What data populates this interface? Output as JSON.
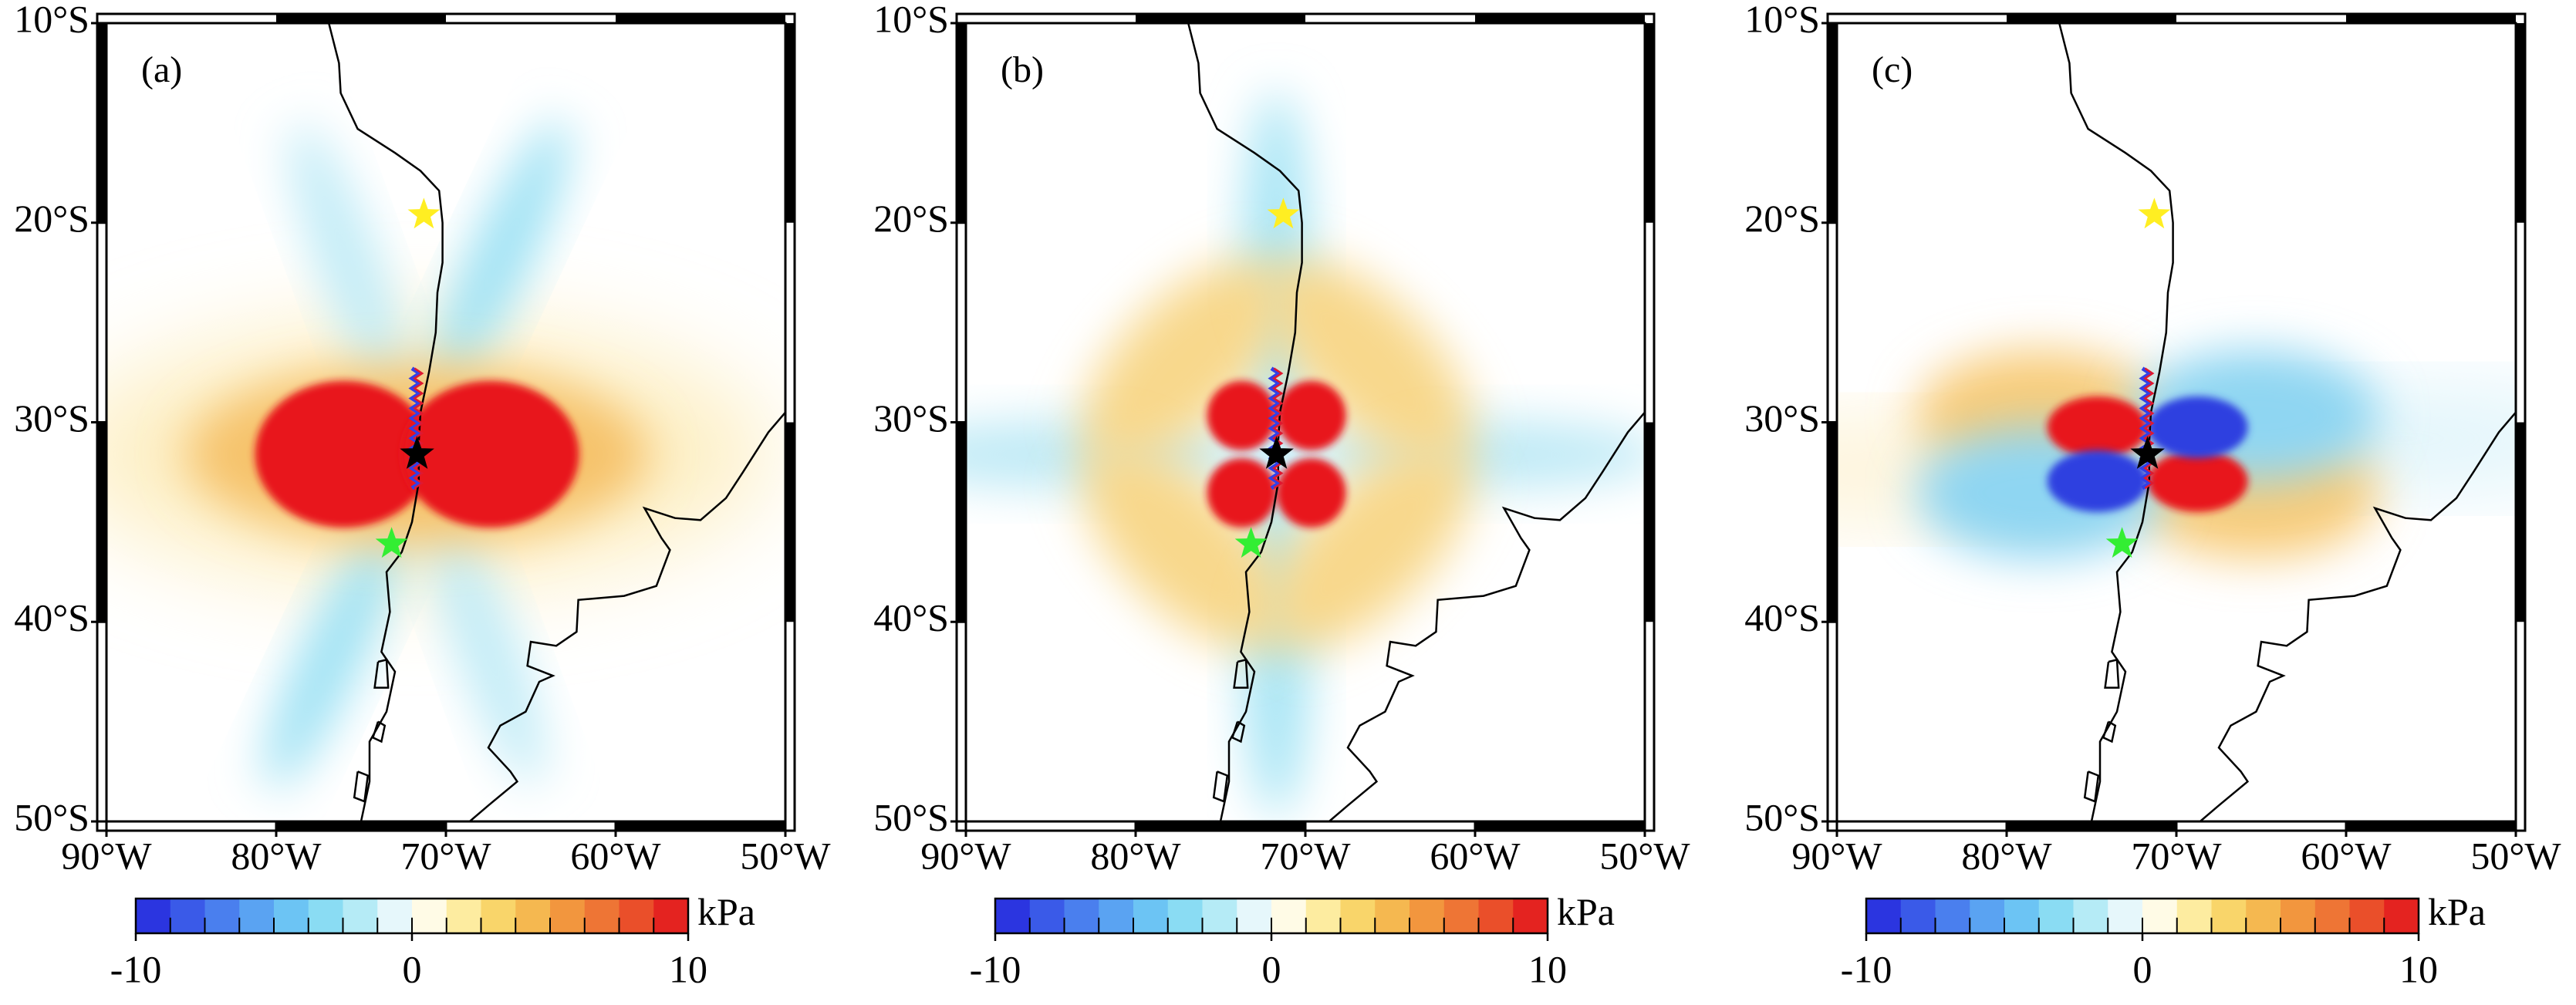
{
  "panels": [
    {
      "label": "(a)"
    },
    {
      "label": "(b)"
    },
    {
      "label": "(c)"
    }
  ],
  "map": {
    "xlim": [
      -90,
      -50
    ],
    "ylim": [
      -50,
      -10
    ],
    "xticks": [
      {
        "value": -90,
        "label": "90°W"
      },
      {
        "value": -80,
        "label": "80°W"
      },
      {
        "value": -70,
        "label": "70°W"
      },
      {
        "value": -60,
        "label": "60°W"
      },
      {
        "value": -50,
        "label": "50°W"
      }
    ],
    "yticks": [
      {
        "value": -10,
        "label": "10°S"
      },
      {
        "value": -20,
        "label": "20°S"
      },
      {
        "value": -30,
        "label": "30°S"
      },
      {
        "value": -40,
        "label": "40°S"
      },
      {
        "value": -50,
        "label": "50°S"
      }
    ]
  },
  "markers": [
    {
      "lon": -71.3,
      "lat": -19.6,
      "color": "#ffee22"
    },
    {
      "lon": -71.7,
      "lat": -31.6,
      "color": "#000000"
    },
    {
      "lon": -73.2,
      "lat": -36.1,
      "color": "#33ee33"
    }
  ],
  "colorbar": {
    "range": [
      -10,
      10
    ],
    "ticks": [
      -10,
      0,
      10
    ],
    "unit": "kPa",
    "colors": [
      "#2b35e0",
      "#3a5ae8",
      "#4a7fee",
      "#5aa3f2",
      "#6cc4f4",
      "#8adcf3",
      "#b5ebf6",
      "#e6f7fb",
      "#fffbe6",
      "#fdeca0",
      "#f9d56a",
      "#f5b850",
      "#f2963e",
      "#ee7535",
      "#ea4f2a",
      "#e42320"
    ]
  }
}
